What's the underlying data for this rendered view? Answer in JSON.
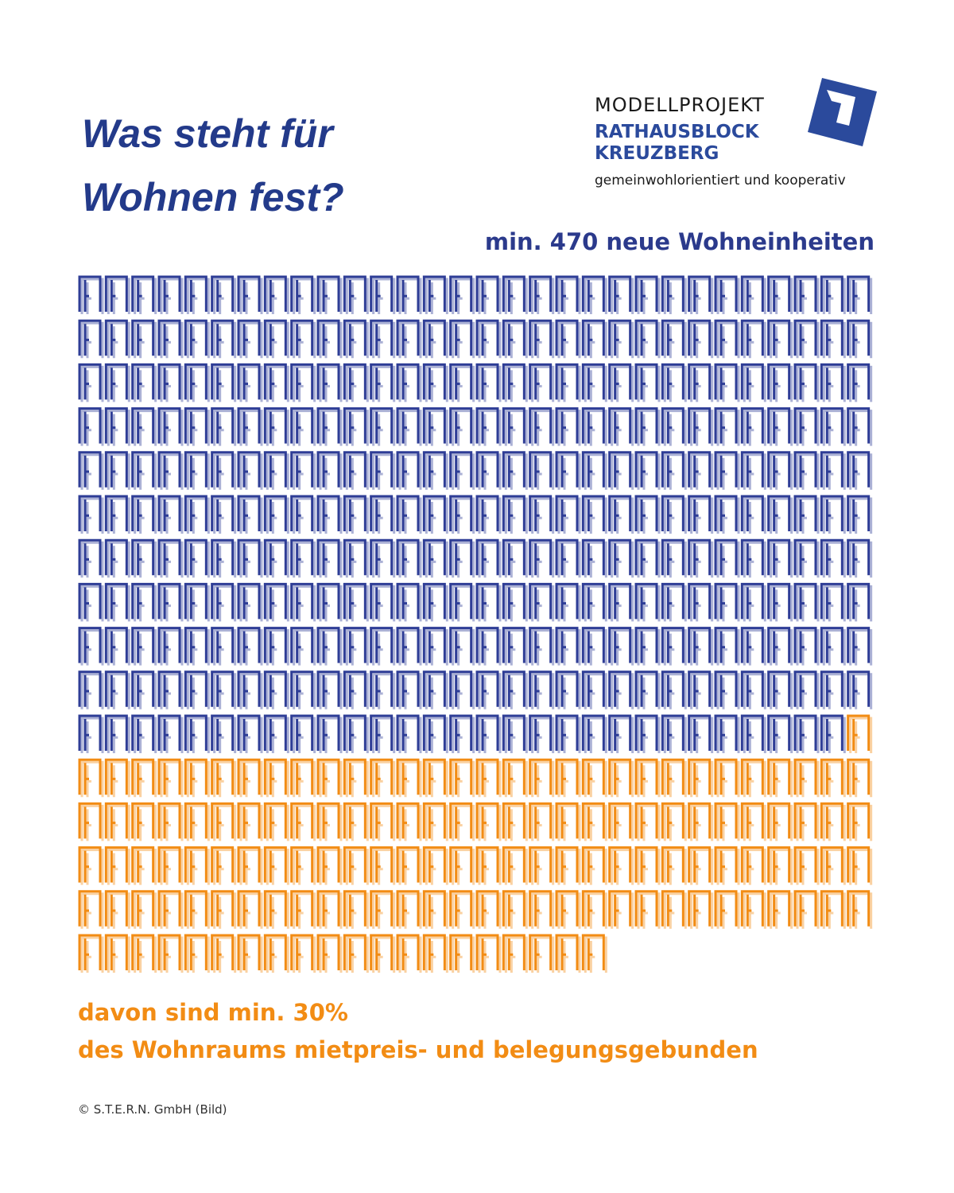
{
  "header": {
    "title_lines": [
      "Was steht für",
      "Wohnen fest?"
    ],
    "logo": {
      "line1": "MODELLPROJEKT",
      "line2": "RATHAUSBLOCK",
      "line3": "KREUZBERG",
      "line4": "gemeinwohlorientiert und kooperativ"
    }
  },
  "chart_data": {
    "type": "pictogram",
    "subtitle": "min. 470 neue Wohneinheiten",
    "series": [
      {
        "color": "#2e3d96",
        "values": [
          329
        ]
      },
      {
        "color": "#f28c14",
        "values": [
          141
        ]
      }
    ],
    "annotation_lines": [
      "davon sind min. 30%",
      "des Wohnraums mietpreis- und belegungsgebunden"
    ]
  },
  "footer": {
    "credit": "© S.T.E.R.N. GmbH (Bild)"
  }
}
